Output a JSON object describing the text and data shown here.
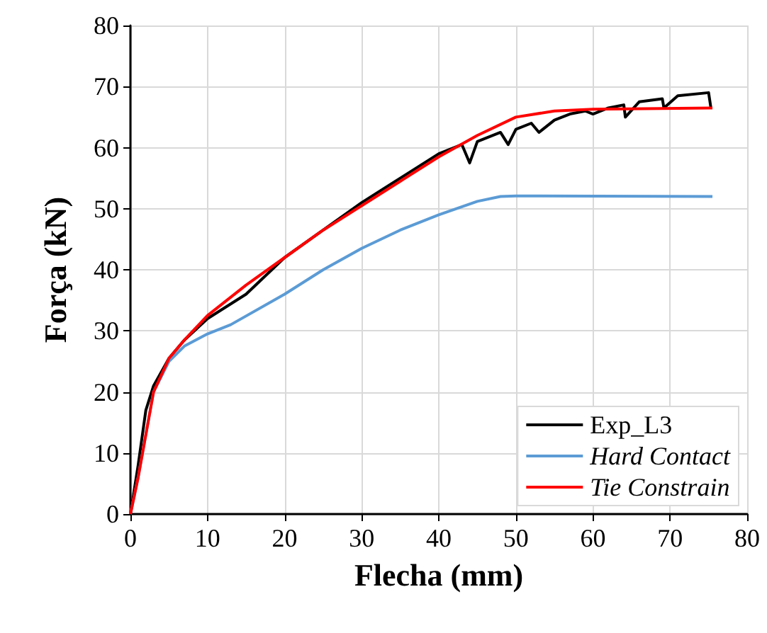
{
  "chart_data": {
    "type": "line",
    "xlabel": "Flecha (mm)",
    "ylabel": "Força (kN)",
    "xlim": [
      0,
      80
    ],
    "xticks": [
      0,
      10,
      20,
      30,
      40,
      50,
      60,
      70,
      80
    ],
    "ylim": [
      0,
      80
    ],
    "yticks": [
      0,
      10,
      20,
      30,
      40,
      50,
      60,
      70,
      80
    ],
    "grid": true,
    "legend": "bottom right",
    "marker": "none",
    "line_style": "solid",
    "series": [
      {
        "name": "Exp_L3",
        "color": "#000000",
        "x": [
          0,
          1,
          2,
          3,
          5,
          7,
          10,
          15,
          20,
          25,
          30,
          35,
          40,
          43,
          44,
          45,
          48,
          49,
          50,
          52,
          53,
          55,
          57,
          59,
          60,
          62,
          64,
          64.2,
          66,
          69,
          69.2,
          71,
          75,
          75.3
        ],
        "values": [
          0,
          8,
          17,
          21,
          25.5,
          28.5,
          32,
          36,
          42,
          46.5,
          51,
          55,
          59,
          60.5,
          57.5,
          61,
          62.5,
          60.5,
          63,
          64,
          62.5,
          64.5,
          65.5,
          66,
          65.5,
          66.5,
          67,
          65,
          67.5,
          68,
          66.5,
          68.5,
          69,
          66.5
        ]
      },
      {
        "name": "Hard Contact",
        "color": "#5b9bd5",
        "x": [
          0,
          1,
          3,
          5,
          7,
          10,
          13,
          20,
          25,
          30,
          35,
          40,
          45,
          48,
          50,
          75.5
        ],
        "values": [
          0,
          6,
          20,
          25,
          27.5,
          29.5,
          31,
          36,
          40,
          43.5,
          46.5,
          49,
          51.2,
          52,
          52.1,
          52
        ]
      },
      {
        "name": "Tie Constrain",
        "color": "#ff0000",
        "x": [
          0,
          1,
          3,
          5,
          7,
          10,
          15,
          20,
          25,
          30,
          35,
          40,
          45,
          50,
          55,
          60,
          75.5
        ],
        "values": [
          0,
          6,
          20,
          25.5,
          28.5,
          32.5,
          37.5,
          42,
          46.5,
          50.5,
          54.5,
          58.5,
          62,
          65,
          66,
          66.3,
          66.5
        ]
      }
    ]
  }
}
